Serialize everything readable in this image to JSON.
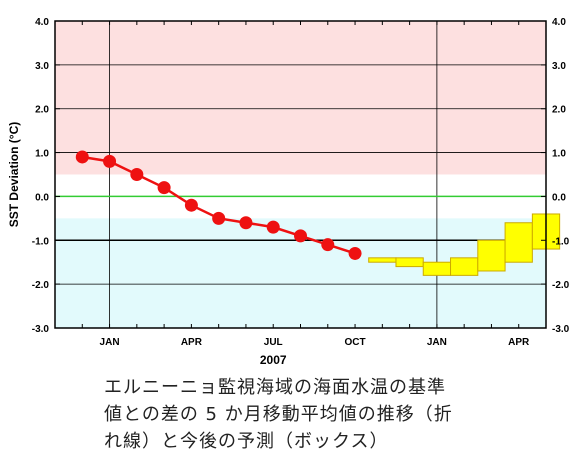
{
  "chart_data": {
    "type": "line",
    "ylabel": "SST Deviation (°C)",
    "ylim": [
      -3.0,
      4.0
    ],
    "yticks": [
      "4.0",
      "3.0",
      "2.0",
      "1.0",
      "0.0",
      "-1.0",
      "-2.0",
      "-3.0"
    ],
    "xlim_months": [
      0,
      18
    ],
    "xtick_labels": [
      "JAN",
      "APR",
      "JUL",
      "OCT",
      "JAN",
      "APR"
    ],
    "xtick_months": [
      2,
      5,
      8,
      11,
      14,
      17
    ],
    "year_label": "2007",
    "shaded_bands": {
      "el_nino_above": 0.5,
      "la_nina_below": -0.5,
      "el_nino_color": "#fde0e0",
      "la_nina_color": "#e2fafc"
    },
    "zero_line_color": "#33cc33",
    "observed_series": {
      "color": "#ee1111",
      "x": [
        1,
        2,
        3,
        4,
        5,
        6,
        7,
        8,
        9,
        10,
        11
      ],
      "values": [
        0.9,
        0.8,
        0.5,
        0.2,
        -0.2,
        -0.5,
        -0.6,
        -0.7,
        -0.9,
        -1.1,
        -1.3
      ]
    },
    "forecast_boxes": {
      "color": "#ffff00",
      "border": "#ccaa00",
      "x": [
        12,
        13,
        14,
        15,
        16,
        17,
        18
      ],
      "lower": [
        -1.5,
        -1.6,
        -1.8,
        -1.8,
        -1.7,
        -1.5,
        -1.2
      ],
      "upper": [
        -1.4,
        -1.4,
        -1.5,
        -1.4,
        -1.0,
        -0.6,
        -0.4
      ]
    },
    "vertical_gridlines_months": [
      2,
      14
    ]
  },
  "caption": {
    "lines": [
      "エルニーニョ監視海域の海面水温の基準",
      "値との差の 5 か月移動平均値の推移（折",
      "れ線）と今後の予測（ボックス）"
    ]
  }
}
